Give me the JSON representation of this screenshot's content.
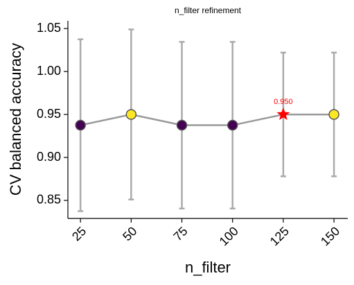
{
  "chart_data": {
    "type": "line",
    "title": "n_filter refinement",
    "xlabel": "n_filter",
    "ylabel": "CV balanced accuracy",
    "x": [
      25,
      50,
      75,
      100,
      125,
      150
    ],
    "xlim": [
      18.8,
      156.8
    ],
    "xticks": [
      25,
      50,
      75,
      100,
      125,
      150
    ],
    "ylim": [
      0.829,
      1.059
    ],
    "yticks": [
      {
        "value": 0.85,
        "label": "0.85"
      },
      {
        "value": 0.9,
        "label": "0.90"
      },
      {
        "value": 0.95,
        "label": "0.95"
      },
      {
        "value": 1.0,
        "label": "1.00"
      },
      {
        "value": 1.05,
        "label": "1.05"
      }
    ],
    "series": [
      {
        "color": "#999999",
        "values": [
          0.9375,
          0.95,
          0.9375,
          0.9375,
          0.95,
          0.95
        ],
        "errors": [
          0.1,
          0.099,
          0.097,
          0.097,
          0.072,
          0.072
        ],
        "error_color": "#aaaaaa",
        "marker_colors": [
          "#440154",
          "#fde725",
          "#440154",
          "#440154",
          "#fde725",
          "#fde725"
        ]
      }
    ],
    "highlight": {
      "x": 125,
      "color": "#ff0000",
      "marker": "star"
    },
    "annotations": [
      {
        "text": "0.950",
        "x": 125,
        "y": 0.95,
        "color": "#ff0000"
      }
    ]
  }
}
